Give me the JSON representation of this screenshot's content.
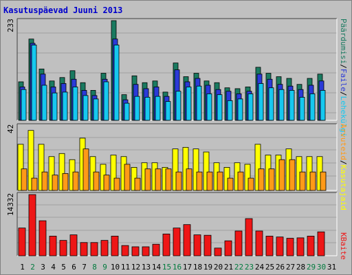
{
  "title": "Kasutuspäevad Juuni 2013",
  "colors": {
    "background": "#c0c0c0",
    "plot_background": "#c0c0c0",
    "gridline": "#a0a0a0",
    "title": "#0000cc",
    "hits": "#1a7a60",
    "files": "#2a3ad8",
    "pages": "#16c8f0",
    "visits": "#ffff00",
    "sites": "#ff9a18",
    "kbytes": "#ee1616",
    "day_label_weekday": "#000000",
    "day_label_weekend": "#007a3d"
  },
  "chart_data": [
    {
      "type": "bar",
      "name": "hits-files-pages",
      "max_label": "233",
      "ylim": [
        0,
        233
      ],
      "grid": true,
      "legend": [
        {
          "label": "Päärdumisi",
          "color": "#1a7a60"
        },
        {
          "label": "Faile",
          "color": "#2a3ad8"
        },
        {
          "label": "Lehekülgi",
          "color": "#16c8f0"
        }
      ],
      "series": [
        {
          "values": [
            90,
            190,
            120,
            92,
            100,
            116,
            88,
            70,
            110,
            233,
            60,
            104,
            88,
            92,
            66,
            134,
            102,
            110,
            92,
            88,
            76,
            74,
            78,
            124,
            110,
            102,
            98,
            84,
            98,
            108
          ]
        },
        {
          "values": [
            78,
            180,
            108,
            78,
            86,
            96,
            70,
            58,
            96,
            190,
            48,
            84,
            74,
            78,
            56,
            118,
            90,
            98,
            82,
            72,
            68,
            62,
            68,
            108,
            96,
            84,
            80,
            72,
            82,
            92
          ]
        },
        {
          "values": [
            72,
            176,
            82,
            64,
            66,
            78,
            58,
            50,
            90,
            176,
            40,
            56,
            54,
            56,
            44,
            68,
            78,
            80,
            62,
            60,
            46,
            50,
            62,
            86,
            76,
            72,
            70,
            54,
            62,
            70
          ]
        }
      ]
    },
    {
      "type": "bar",
      "name": "visits-sites",
      "max_label": "42",
      "ylim": [
        0,
        42
      ],
      "grid": true,
      "legend": [
        {
          "label": "Kasutajaid",
          "color": "#ffff00"
        },
        {
          "label": "Arvuteid",
          "color": "#ff9a18"
        }
      ],
      "series": [
        {
          "values": [
            30,
            39,
            30,
            22,
            24,
            20,
            34,
            22,
            17,
            23,
            22,
            15,
            18,
            18,
            15,
            27,
            28,
            27,
            25,
            18,
            15,
            18,
            17,
            30,
            23,
            23,
            27,
            22,
            22,
            22
          ]
        },
        {
          "values": [
            14,
            8,
            12,
            10,
            11,
            12,
            27,
            12,
            10,
            8,
            17,
            8,
            14,
            14,
            14,
            12,
            14,
            12,
            12,
            12,
            8,
            12,
            8,
            14,
            14,
            20,
            20,
            12,
            12,
            12
          ]
        }
      ]
    },
    {
      "type": "bar",
      "name": "kbytes",
      "max_label": "14332",
      "ylim": [
        0,
        14332
      ],
      "grid": true,
      "legend": [
        {
          "label": "KBaite",
          "color": "#ee1616"
        }
      ],
      "series": [
        {
          "values": [
            6500,
            14332,
            8200,
            4600,
            3600,
            4900,
            3100,
            3100,
            3600,
            4600,
            2400,
            2100,
            2100,
            2700,
            5100,
            6500,
            7300,
            4900,
            4800,
            1800,
            3500,
            5800,
            8700,
            5800,
            4600,
            4400,
            4100,
            4200,
            4600,
            5600
          ]
        }
      ]
    }
  ],
  "x_labels": [
    {
      "text": "1",
      "weekend": false
    },
    {
      "text": "2",
      "weekend": true
    },
    {
      "text": "3",
      "weekend": false
    },
    {
      "text": "4",
      "weekend": false
    },
    {
      "text": "5",
      "weekend": false
    },
    {
      "text": "6",
      "weekend": false
    },
    {
      "text": "7",
      "weekend": false
    },
    {
      "text": "8",
      "weekend": true
    },
    {
      "text": "9",
      "weekend": true
    },
    {
      "text": "10",
      "weekend": false
    },
    {
      "text": "11",
      "weekend": false
    },
    {
      "text": "12",
      "weekend": false
    },
    {
      "text": "13",
      "weekend": false
    },
    {
      "text": "14",
      "weekend": false
    },
    {
      "text": "15",
      "weekend": true
    },
    {
      "text": "16",
      "weekend": true
    },
    {
      "text": "17",
      "weekend": false
    },
    {
      "text": "18",
      "weekend": false
    },
    {
      "text": "19",
      "weekend": false
    },
    {
      "text": "20",
      "weekend": false
    },
    {
      "text": "21",
      "weekend": false
    },
    {
      "text": "22",
      "weekend": true
    },
    {
      "text": "23",
      "weekend": true
    },
    {
      "text": "24",
      "weekend": false
    },
    {
      "text": "25",
      "weekend": false
    },
    {
      "text": "26",
      "weekend": false
    },
    {
      "text": "27",
      "weekend": false
    },
    {
      "text": "28",
      "weekend": false
    },
    {
      "text": "29",
      "weekend": true
    },
    {
      "text": "30",
      "weekend": true
    },
    {
      "text": "31",
      "weekend": false
    }
  ]
}
